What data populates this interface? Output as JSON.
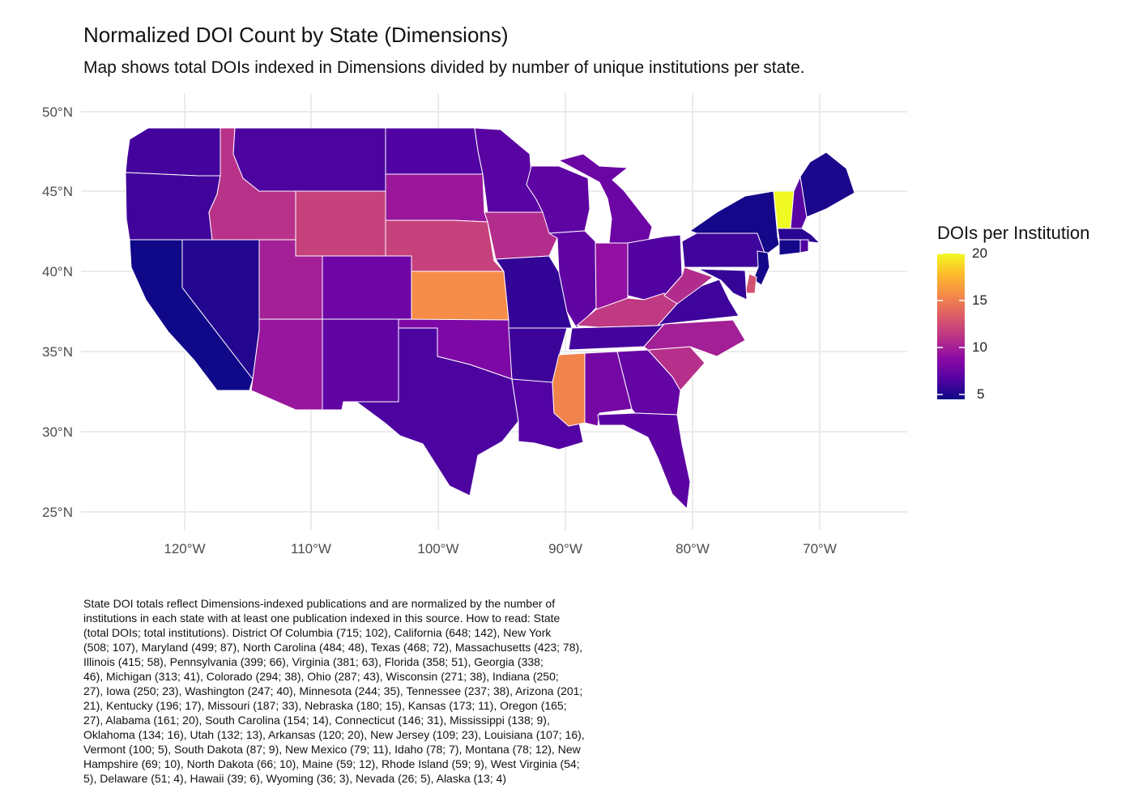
{
  "title": "Normalized DOI Count by State (Dimensions)",
  "subtitle": "Map shows total DOIs indexed in Dimensions divided by number of unique institutions per state.",
  "legend": {
    "title": "DOIs per Institution",
    "ticks": [
      "20",
      "15",
      "10",
      "5"
    ],
    "tick_values": [
      20,
      15,
      10,
      5
    ],
    "range": [
      4.5,
      20
    ],
    "palette": [
      "#0D0887",
      "#5402A3",
      "#8B0AA5",
      "#B93289",
      "#DB5C68",
      "#F48849",
      "#FEBC2A",
      "#F0F921"
    ]
  },
  "axes": {
    "y_ticks": [
      "50°N",
      "45°N",
      "40°N",
      "35°N",
      "30°N",
      "25°N"
    ],
    "x_ticks": [
      "120°W",
      "110°W",
      "100°W",
      "90°W",
      "80°W",
      "70°W"
    ]
  },
  "map_data": {
    "type": "choropleth",
    "value_name": "DOIs per Institution",
    "states": [
      {
        "name": "Washington",
        "value": 6.18
      },
      {
        "name": "Oregon",
        "value": 6.11
      },
      {
        "name": "California",
        "value": 4.56
      },
      {
        "name": "Nevada",
        "value": 5.2
      },
      {
        "name": "Idaho",
        "value": 11.14
      },
      {
        "name": "Montana",
        "value": 6.5
      },
      {
        "name": "Wyoming",
        "value": 12.0
      },
      {
        "name": "Utah",
        "value": 10.15
      },
      {
        "name": "Colorado",
        "value": 7.74
      },
      {
        "name": "Arizona",
        "value": 9.57
      },
      {
        "name": "New Mexico",
        "value": 7.18
      },
      {
        "name": "North Dakota",
        "value": 6.6
      },
      {
        "name": "South Dakota",
        "value": 9.67
      },
      {
        "name": "Nebraska",
        "value": 12.0
      },
      {
        "name": "Kansas",
        "value": 15.73
      },
      {
        "name": "Oklahoma",
        "value": 8.38
      },
      {
        "name": "Texas",
        "value": 6.5
      },
      {
        "name": "Minnesota",
        "value": 6.97
      },
      {
        "name": "Iowa",
        "value": 10.87
      },
      {
        "name": "Missouri",
        "value": 5.67
      },
      {
        "name": "Arkansas",
        "value": 6.0
      },
      {
        "name": "Louisiana",
        "value": 6.69
      },
      {
        "name": "Wisconsin",
        "value": 7.13
      },
      {
        "name": "Illinois",
        "value": 7.16
      },
      {
        "name": "Michigan",
        "value": 7.63
      },
      {
        "name": "Indiana",
        "value": 9.26
      },
      {
        "name": "Ohio",
        "value": 6.67
      },
      {
        "name": "Kentucky",
        "value": 11.53
      },
      {
        "name": "Tennessee",
        "value": 6.24
      },
      {
        "name": "Mississippi",
        "value": 15.33
      },
      {
        "name": "Alabama",
        "value": 8.05
      },
      {
        "name": "Georgia",
        "value": 7.35
      },
      {
        "name": "Florida",
        "value": 7.02
      },
      {
        "name": "South Carolina",
        "value": 11.0
      },
      {
        "name": "North Carolina",
        "value": 10.08
      },
      {
        "name": "Virginia",
        "value": 6.05
      },
      {
        "name": "West Virginia",
        "value": 10.8
      },
      {
        "name": "Pennsylvania",
        "value": 6.05
      },
      {
        "name": "New York",
        "value": 4.75
      },
      {
        "name": "Vermont",
        "value": 20.0
      },
      {
        "name": "New Hampshire",
        "value": 6.9
      },
      {
        "name": "Maine",
        "value": 4.92
      },
      {
        "name": "Massachusetts",
        "value": 5.42
      },
      {
        "name": "Connecticut",
        "value": 4.71
      },
      {
        "name": "Rhode Island",
        "value": 6.56
      },
      {
        "name": "New Jersey",
        "value": 4.74
      },
      {
        "name": "Delaware",
        "value": 12.75
      },
      {
        "name": "Maryland",
        "value": 5.74
      }
    ]
  },
  "caption_lines": [
    "State DOI totals reflect Dimensions-indexed publications and are normalized by the number of",
    "institutions in each state with at least one publication indexed in this source. How to read: State",
    "(total DOIs; total institutions). District Of Columbia (715; 102), California (648; 142), New York",
    "(508; 107), Maryland (499; 87), North Carolina (484; 48), Texas (468; 72), Massachusetts (423; 78),",
    "Illinois (415; 58), Pennsylvania (399; 66), Virginia (381; 63), Florida (358; 51), Georgia (338;",
    "46), Michigan (313; 41), Colorado (294; 38), Ohio (287; 43), Wisconsin (271; 38), Indiana (250;",
    "27), Iowa (250; 23), Washington (247; 40), Minnesota (244; 35), Tennessee (237; 38), Arizona (201;",
    "21), Kentucky (196; 17), Missouri (187; 33), Nebraska (180; 15), Kansas (173; 11), Oregon (165;",
    "27), Alabama (161; 20), South Carolina (154; 14), Connecticut (146; 31), Mississippi (138; 9),",
    "Oklahoma (134; 16), Utah (132; 13), Arkansas (120; 20), New Jersey (109; 23), Louisiana (107; 16),",
    "Vermont (100; 5), South Dakota (87; 9), New Mexico (79; 11), Idaho (78; 7), Montana (78; 12), New",
    "Hampshire (69; 10), North Dakota (66; 10), Maine (59; 12), Rhode Island (59; 9), West Virginia (54;",
    "5), Delaware (51; 4), Hawaii (39; 6), Wyoming (36; 3), Nevada (26; 5), Alaska (13; 4)"
  ]
}
